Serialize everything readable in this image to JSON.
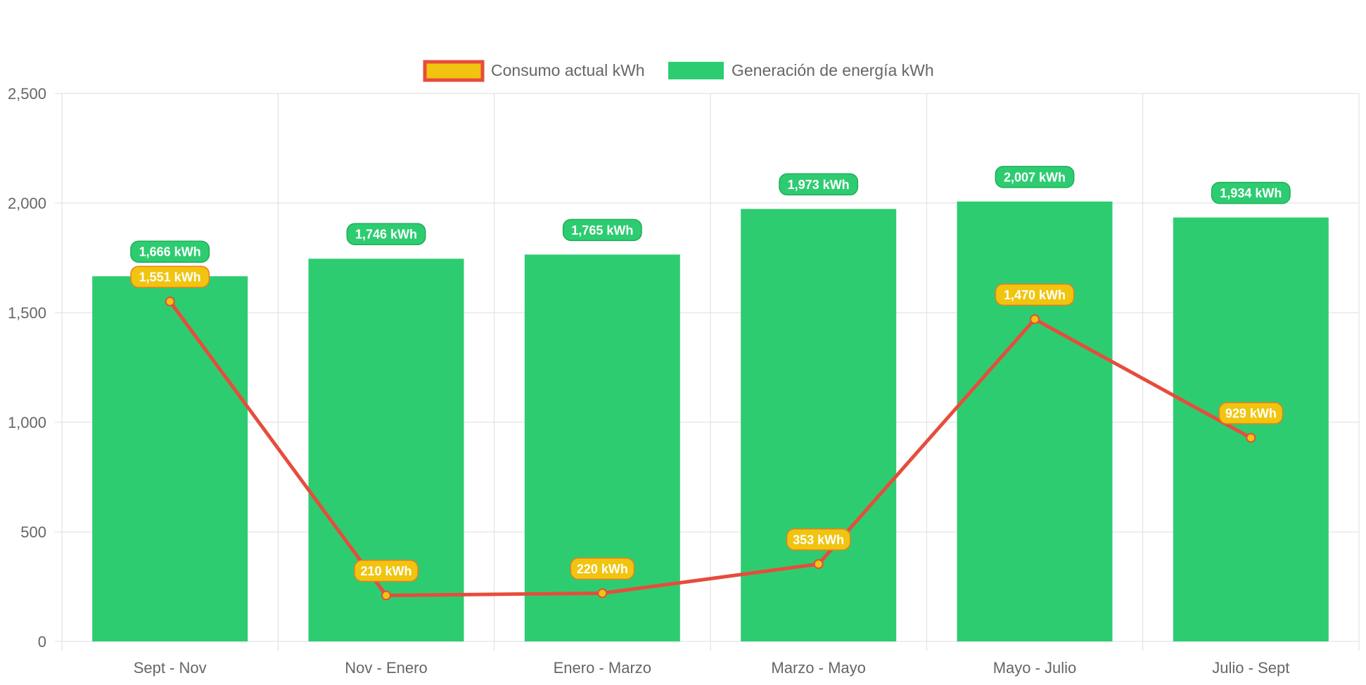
{
  "chart_data": {
    "type": "bar",
    "categories": [
      "Sept - Nov",
      "Nov - Enero",
      "Enero - Marzo",
      "Marzo - Mayo",
      "Mayo - Julio",
      "Julio - Sept"
    ],
    "series": [
      {
        "name": "Generación de energía kWh",
        "type": "bar",
        "values": [
          1666,
          1746,
          1765,
          1973,
          2007,
          1934
        ],
        "labels": [
          "1,666 kWh",
          "1,746 kWh",
          "1,765 kWh",
          "1,973 kWh",
          "2,007 kWh",
          "1,934 kWh"
        ],
        "color": "#2ecc71",
        "label_border": "#1fae57"
      },
      {
        "name": "Consumo actual kWh",
        "type": "line",
        "values": [
          1551,
          210,
          220,
          353,
          1470,
          929
        ],
        "labels": [
          "1,551 kWh",
          "210 kWh",
          "220 kWh",
          "353 kWh",
          "1,470 kWh",
          "929 kWh"
        ],
        "color": "#e74c3c",
        "fill": "#f1c40f"
      }
    ],
    "yticks": [
      "0",
      "500",
      "1,000",
      "1,500",
      "2,000",
      "2,500"
    ],
    "ylim": [
      0,
      2500
    ],
    "grid": true,
    "legend": "top-center",
    "gridColor": "#dddddd",
    "tickColor": "#666666"
  }
}
